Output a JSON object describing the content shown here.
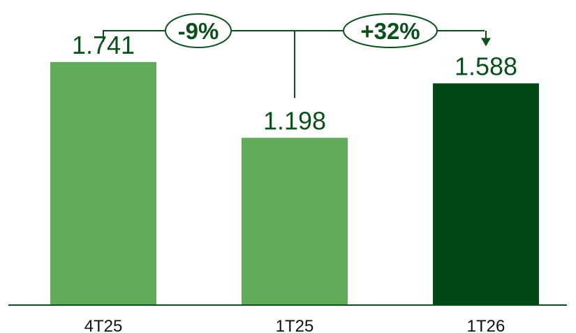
{
  "chart_data": {
    "type": "bar",
    "categories": [
      "4T25",
      "1T25",
      "1T26"
    ],
    "values": [
      1741,
      1198,
      1588
    ],
    "value_labels": [
      "1.741",
      "1.198",
      "1.588"
    ],
    "ylim": [
      0,
      2000
    ],
    "grid": false,
    "title": "",
    "xlabel": "",
    "ylabel": "",
    "bar_colors": [
      "#62ab5a",
      "#62ab5a",
      "#004716"
    ],
    "comparisons": [
      {
        "label": "-9%",
        "from": "4T25",
        "to": "1T26"
      },
      {
        "label": "+32%",
        "from": "1T25",
        "to": "1T26"
      }
    ]
  },
  "colors": {
    "connector": "#0b4f1c",
    "axis": "#0b4f1c",
    "value_text": "#0b4f1c"
  }
}
